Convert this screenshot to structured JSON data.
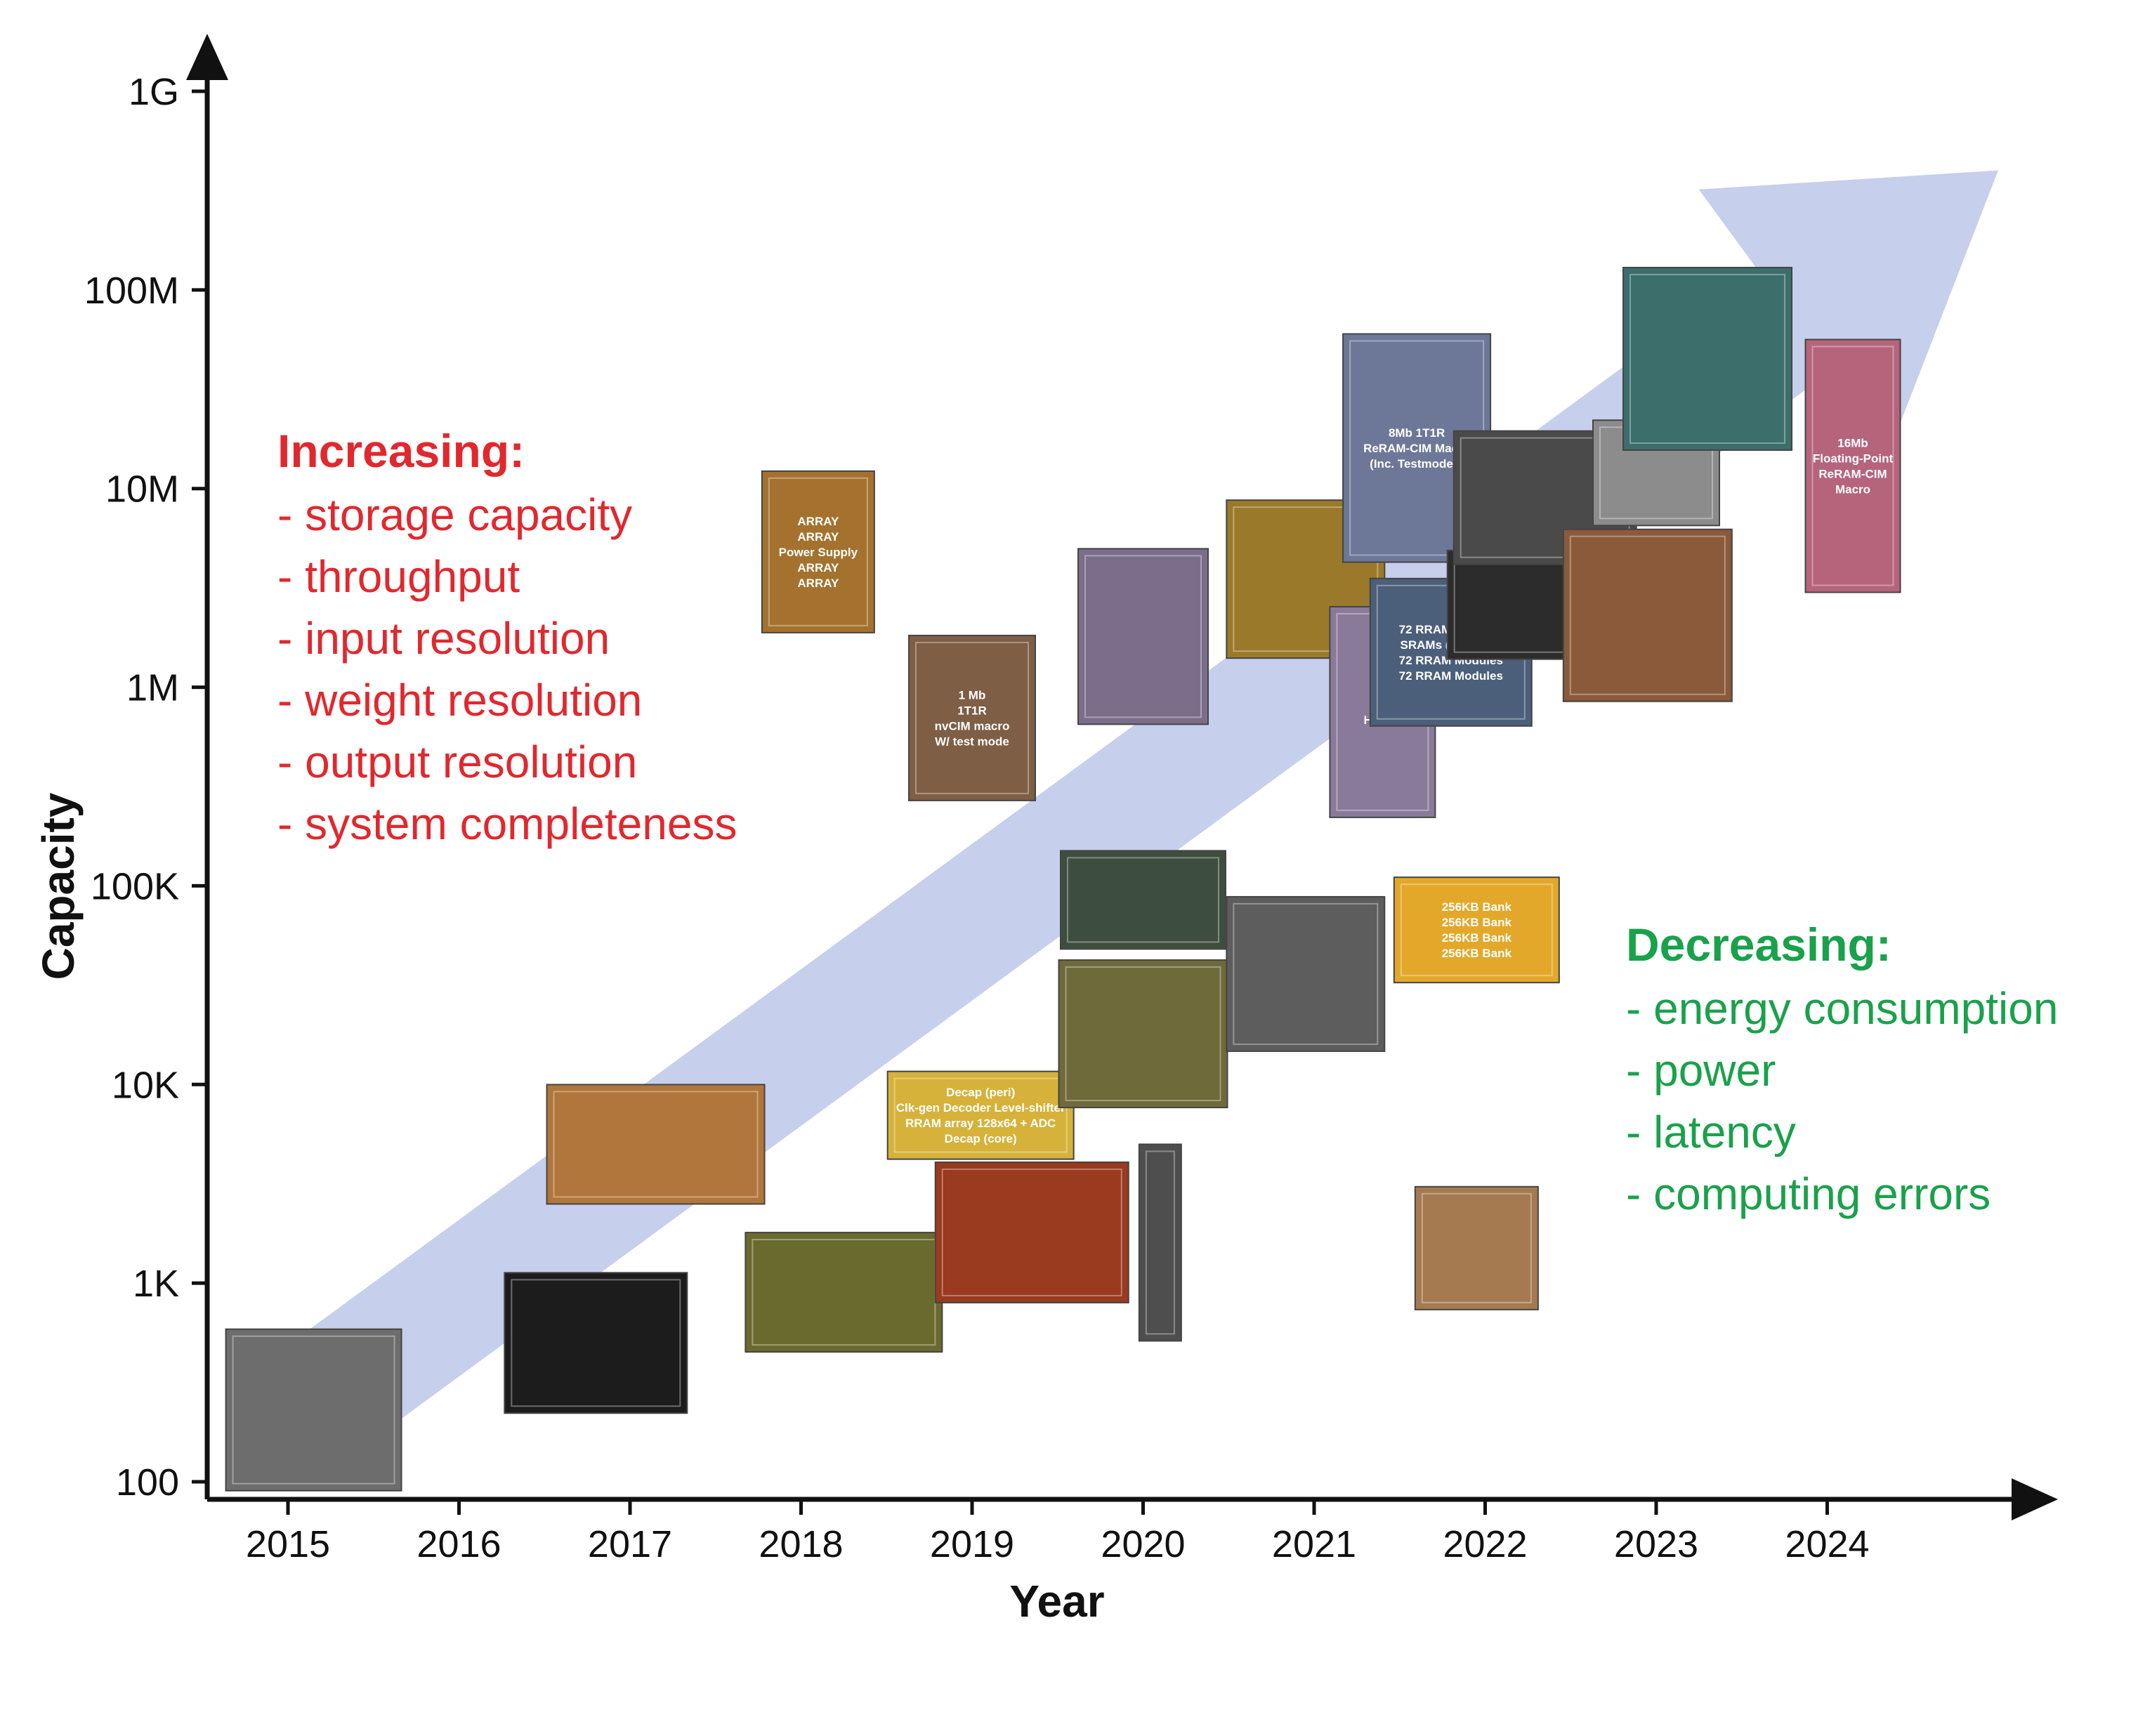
{
  "chart_data": {
    "type": "scatter",
    "xlabel": "Year",
    "ylabel": "Capacity",
    "y_scale": "log",
    "xlim": [
      2014.55,
      2025.3
    ],
    "ylim": [
      100,
      1000000000
    ],
    "x_ticks": [
      {
        "value": 2015,
        "label": "2015"
      },
      {
        "value": 2016,
        "label": "2016"
      },
      {
        "value": 2017,
        "label": "2017"
      },
      {
        "value": 2018,
        "label": "2018"
      },
      {
        "value": 2019,
        "label": "2019"
      },
      {
        "value": 2020,
        "label": "2020"
      },
      {
        "value": 2021,
        "label": "2021"
      },
      {
        "value": 2022,
        "label": "2022"
      },
      {
        "value": 2023,
        "label": "2023"
      },
      {
        "value": 2024,
        "label": "2024"
      }
    ],
    "y_ticks": [
      {
        "value": 100,
        "label": "100"
      },
      {
        "value": 1000,
        "label": "1K"
      },
      {
        "value": 10000,
        "label": "10K"
      },
      {
        "value": 100000,
        "label": "100K"
      },
      {
        "value": 1000000,
        "label": "1M"
      },
      {
        "value": 10000000,
        "label": "10M"
      },
      {
        "value": 100000000,
        "label": "100M"
      },
      {
        "value": 1000000000,
        "label": "1G"
      }
    ],
    "trend_arrow": {
      "color": "#c6cfec",
      "from": {
        "x": 2014.9,
        "y": 170
      },
      "to": {
        "x": 2025.0,
        "y": 400000000
      }
    },
    "points": [
      {
        "x": 2015.15,
        "y": 230,
        "color": "#6d6d6d",
        "lines": []
      },
      {
        "x": 2016.8,
        "y": 500,
        "color": "#1c1c1c",
        "lines": []
      },
      {
        "x": 2017.15,
        "y": 5000,
        "color": "#b0763b",
        "lines": []
      },
      {
        "x": 2018.1,
        "y": 4800000,
        "color": "#a4722e",
        "lines": [
          "ARRAY",
          "ARRAY",
          "Power Supply",
          "ARRAY",
          "ARRAY"
        ]
      },
      {
        "x": 2018.25,
        "y": 900,
        "color": "#6b6a2e",
        "lines": []
      },
      {
        "x": 2019.0,
        "y": 700000,
        "color": "#7e5e45",
        "lines": [
          "1 Mb",
          "1T1R",
          "nvCIM macro",
          "W/ test mode"
        ]
      },
      {
        "x": 2019.05,
        "y": 7000,
        "color": "#d6b23a",
        "lines": [
          "Decap (peri)",
          "Clk-gen Decoder Level-shifter",
          "RRAM array 128x64 + ADC",
          "Decap (core)"
        ]
      },
      {
        "x": 2019.35,
        "y": 1800,
        "color": "#9a3a1f",
        "lines": []
      },
      {
        "x": 2020.0,
        "y": 1800000,
        "color": "#7a6e8a",
        "lines": []
      },
      {
        "x": 2020.0,
        "y": 85000,
        "color": "#3d4e3e",
        "lines": []
      },
      {
        "x": 2020.0,
        "y": 18000,
        "color": "#6f6a3a",
        "lines": []
      },
      {
        "x": 2020.1,
        "y": 1600,
        "color": "#4e4e4e",
        "lines": []
      },
      {
        "x": 2020.95,
        "y": 3500000,
        "color": "#9a7a2a",
        "lines": []
      },
      {
        "x": 2020.95,
        "y": 36000,
        "color": "#5d5d5d",
        "lines": []
      },
      {
        "x": 2021.6,
        "y": 16000000,
        "color": "#6d7898",
        "lines": [
          "8Mb 1T1R",
          "ReRAM-CIM Macro",
          "(Inc. Testmodes)"
        ]
      },
      {
        "x": 2021.4,
        "y": 750000,
        "color": "#8a7a9a",
        "lines": [
          "2M",
          "Hybrid"
        ]
      },
      {
        "x": 2021.8,
        "y": 1500000,
        "color": "#4b5f7a",
        "lines": [
          "72 RRAM Modules",
          "SRAMs (6 * 64KB)",
          "72 RRAM Modules",
          "72 RRAM Modules"
        ]
      },
      {
        "x": 2021.95,
        "y": 60000,
        "color": "#e3a82a",
        "lines": [
          "256KB Bank",
          "256KB Bank",
          "256KB Bank",
          "256KB Bank"
        ]
      },
      {
        "x": 2022.2,
        "y": 2600000,
        "color": "#2c2c2c",
        "lines": []
      },
      {
        "x": 2022.35,
        "y": 9000000,
        "color": "#4a4a4a",
        "lines": []
      },
      {
        "x": 2021.95,
        "y": 1500,
        "color": "#a57a50",
        "lines": []
      },
      {
        "x": 2023.0,
        "y": 12000000,
        "color": "#8c8c8c",
        "lines": []
      },
      {
        "x": 2022.95,
        "y": 2300000,
        "color": "#8a5a3a",
        "lines": []
      },
      {
        "x": 2023.3,
        "y": 45000000,
        "color": "#3c6e6c",
        "lines": []
      },
      {
        "x": 2024.15,
        "y": 13000000,
        "color": "#b5647c",
        "lines": [
          "16Mb",
          "Floating-Point",
          "ReRAM-CIM",
          "Macro"
        ]
      }
    ]
  },
  "increasing": {
    "title": "Increasing:",
    "color": "#e1282e",
    "items": [
      "-  storage capacity",
      "-  throughput",
      "-  input resolution",
      "-  weight resolution",
      "-  output resolution",
      "-  system completeness"
    ]
  },
  "decreasing": {
    "title": "Decreasing:",
    "color": "#1aa14b",
    "items": [
      "-  energy consumption",
      "-  power",
      "-  latency",
      "-  computing errors"
    ]
  }
}
